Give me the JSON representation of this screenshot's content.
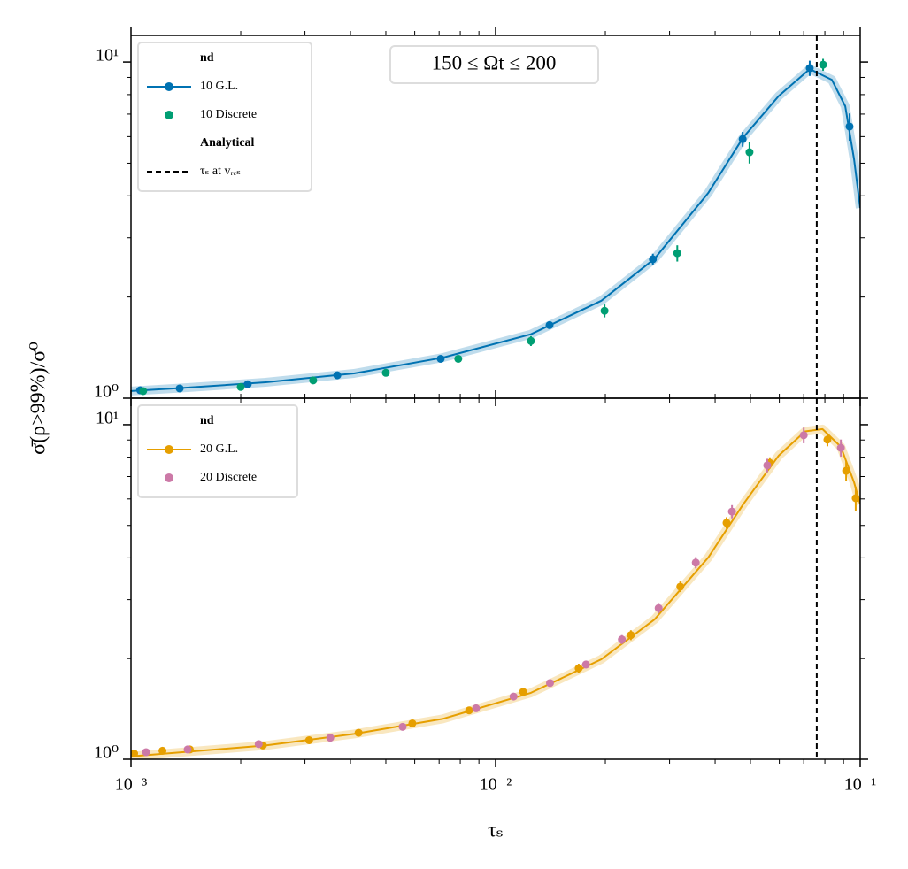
{
  "chart_data": [
    {
      "type": "scatter",
      "annotation": "150 ≤ Ωt ≤ 200",
      "ylabel": "σ̄(ρ>99%)/σ⁰",
      "log_x": true,
      "log_y": true,
      "xlim": [
        0.001,
        0.1
      ],
      "ylim": [
        1,
        12
      ],
      "xticks": [
        0.001,
        0.01,
        0.1
      ],
      "xticks_minor": [
        0.002,
        0.003,
        0.004,
        0.005,
        0.006,
        0.007,
        0.008,
        0.009,
        0.02,
        0.03,
        0.04,
        0.05,
        0.06,
        0.07,
        0.08,
        0.09
      ],
      "yticks": [
        {
          "value": 1,
          "label": "10⁰"
        },
        {
          "value": 10,
          "label": "10¹"
        }
      ],
      "yticks_minor": [
        2,
        3,
        4,
        5,
        6,
        7,
        8,
        9
      ],
      "legend_loc": "upper left",
      "legend_title": "nd",
      "legend_title2": "Analytical",
      "vline": {
        "x": 0.076,
        "name": "τₛ at vᵣₑₛ",
        "color": "#000000",
        "style": "dashed"
      },
      "series": [
        {
          "name": "10 G.L.",
          "color": "#0072b2",
          "kind": "line-markers",
          "x": [
            0.00106,
            0.00136,
            0.00209,
            0.00368,
            0.00707,
            0.01406,
            0.027,
            0.0476,
            0.0727,
            0.0935
          ],
          "values": [
            1.056,
            1.069,
            1.1,
            1.17,
            1.31,
            1.65,
            2.59,
            5.9,
            9.59,
            6.43
          ],
          "errors": [
            0.01,
            0.01,
            0.01,
            0.015,
            0.02,
            0.03,
            0.1,
            0.3,
            0.5,
            0.6
          ],
          "line_x": [
            0.001,
            0.00134,
            0.00234,
            0.00409,
            0.00715,
            0.0125,
            0.0195,
            0.0273,
            0.0383,
            0.0478,
            0.0598,
            0.0727,
            0.0836,
            0.091,
            0.0962,
            0.1
          ],
          "line_values": [
            1.05,
            1.07,
            1.115,
            1.185,
            1.32,
            1.55,
            1.95,
            2.6,
            4.08,
            5.97,
            7.93,
            9.53,
            8.86,
            7.39,
            5.13,
            3.68
          ]
        },
        {
          "name": "10 Discrete",
          "color": "#009e73",
          "kind": "markers",
          "x": [
            0.00108,
            0.002,
            0.00316,
            0.005,
            0.0079,
            0.0125,
            0.0199,
            0.0315,
            0.0497,
            0.0791
          ],
          "values": [
            1.05,
            1.08,
            1.13,
            1.19,
            1.31,
            1.48,
            1.82,
            2.7,
            5.39,
            9.82
          ],
          "errors": [
            0.01,
            0.01,
            0.01,
            0.015,
            0.03,
            0.05,
            0.08,
            0.15,
            0.4,
            0.4
          ]
        }
      ]
    },
    {
      "type": "scatter",
      "xlabel": "τₛ",
      "log_x": true,
      "log_y": true,
      "xlim": [
        0.001,
        0.1
      ],
      "ylim": [
        1,
        12
      ],
      "xticks": [
        {
          "value": 0.001,
          "label": "10⁻³"
        },
        {
          "value": 0.01,
          "label": "10⁻²"
        },
        {
          "value": 0.1,
          "label": "10⁻¹"
        }
      ],
      "xticks_minor": [
        0.002,
        0.003,
        0.004,
        0.005,
        0.006,
        0.007,
        0.008,
        0.009,
        0.02,
        0.03,
        0.04,
        0.05,
        0.06,
        0.07,
        0.08,
        0.09
      ],
      "yticks": [
        {
          "value": 1,
          "label": "10⁰"
        },
        {
          "value": 10,
          "label": "10¹"
        }
      ],
      "yticks_minor": [
        2,
        3,
        4,
        5,
        6,
        7,
        8,
        9
      ],
      "legend_loc": "upper left",
      "legend_title": "nd",
      "vline": {
        "x": 0.076,
        "color": "#000000",
        "style": "dashed"
      },
      "series": [
        {
          "name": "20 G.L.",
          "color": "#e69f00",
          "kind": "line-markers",
          "x": [
            0.00102,
            0.00122,
            0.00145,
            0.0023,
            0.00308,
            0.00421,
            0.00591,
            0.00846,
            0.0119,
            0.0169,
            0.0235,
            0.0321,
            0.043,
            0.0565,
            0.0813,
            0.0915,
            0.0972
          ],
          "values": [
            1.04,
            1.06,
            1.07,
            1.1,
            1.14,
            1.2,
            1.28,
            1.4,
            1.59,
            1.87,
            2.35,
            3.28,
            5.09,
            7.69,
            9.02,
            7.28,
            6.03
          ],
          "errors": [
            0.01,
            0.01,
            0.01,
            0.01,
            0.01,
            0.015,
            0.02,
            0.03,
            0.04,
            0.06,
            0.08,
            0.12,
            0.2,
            0.3,
            0.4,
            0.5,
            0.5
          ],
          "line_x": [
            0.001,
            0.00234,
            0.00409,
            0.00715,
            0.0125,
            0.0195,
            0.0273,
            0.0383,
            0.0478,
            0.0598,
            0.0706,
            0.0788,
            0.0885,
            0.0962,
            0.1
          ],
          "line_values": [
            1.02,
            1.1,
            1.19,
            1.32,
            1.58,
            1.99,
            2.62,
            4.01,
            5.79,
            8.09,
            9.55,
            9.7,
            8.59,
            6.72,
            5.79
          ]
        },
        {
          "name": "20 Discrete",
          "color": "#cc79a7",
          "kind": "markers",
          "x": [
            0.0011,
            0.00143,
            0.00224,
            0.00352,
            0.00556,
            0.00884,
            0.0112,
            0.0141,
            0.0177,
            0.0222,
            0.028,
            0.0354,
            0.0445,
            0.0556,
            0.07,
            0.0885
          ],
          "values": [
            1.05,
            1.07,
            1.11,
            1.16,
            1.25,
            1.42,
            1.54,
            1.69,
            1.92,
            2.28,
            2.83,
            3.87,
            5.5,
            7.56,
            9.3,
            8.53
          ],
          "errors": [
            0.01,
            0.01,
            0.01,
            0.01,
            0.015,
            0.02,
            0.03,
            0.04,
            0.05,
            0.07,
            0.1,
            0.15,
            0.25,
            0.35,
            0.5,
            0.5
          ]
        }
      ]
    }
  ]
}
